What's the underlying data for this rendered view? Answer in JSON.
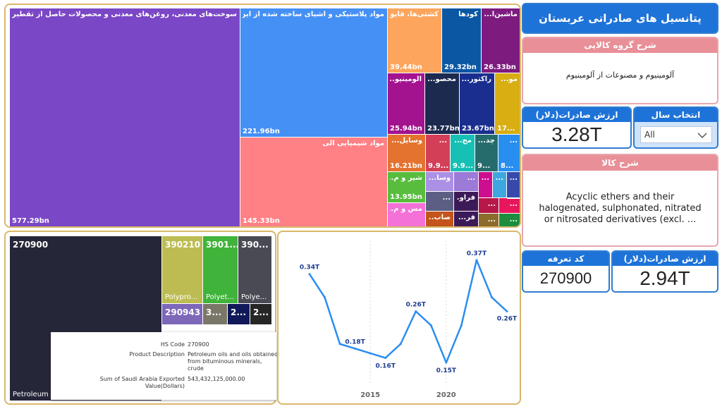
{
  "title": "پتانسیل های صادراتی عربستان",
  "group_card": {
    "header": "شرح گروه کالایی",
    "value": "آلومینیوم و مصنوعات از آلومینیوم"
  },
  "export_card_top": {
    "header": "ارزش صادرات(دلار)",
    "value": "3.28T"
  },
  "year_select": {
    "header": "انتخاب سال",
    "selected": "All",
    "arrow_icon": "chevron-down-icon"
  },
  "product_card": {
    "header": "شرح کالا",
    "value": "Acyclic ethers and their halogenated, sulphonated, nitrated or nitrosated derivatives (excl. ..."
  },
  "tariff_card": {
    "header": "کد تعرفه",
    "value": "270900"
  },
  "export_card_bottom": {
    "header": "ارزش صادرات(دلار)",
    "value": "2.94T"
  },
  "treemap_groups": [
    {
      "label": "سوخت‌های معدنی، روغن‌های معدنی و محصولات حاصل از تقطیر آنها؛ مواد ق...",
      "value": "577.29bn",
      "color": "#7a47c6"
    },
    {
      "label": "مواد پلاستیکی و اشیای ساخته شده از این مواد",
      "value": "221.96bn",
      "color": "#4590f5"
    },
    {
      "label": "مواد شیمیایی آلی",
      "value": "145.33bn",
      "color": "#ff8085"
    },
    {
      "label": "کشتی‌ها، قایق...",
      "value": "39.44bn",
      "color": "#fda55c"
    },
    {
      "label": "کودها",
      "value": "29.32bn",
      "color": "#0b57a4"
    },
    {
      "label": "ماشین‌آ...",
      "value": "26.33bn",
      "color": "#7d1b7f"
    },
    {
      "label": "آلومینیو...",
      "value": "25.94bn",
      "color": "#a3138f"
    },
    {
      "label": "محصو...",
      "value": "23.77bn",
      "color": "#1c2a4f"
    },
    {
      "label": "راکتور...",
      "value": "23.67bn",
      "color": "#192e8e"
    },
    {
      "label": "مو...",
      "value": "17...",
      "color": "#d8ae12"
    },
    {
      "label": "وسایل...",
      "value": "16.21bn",
      "color": "#e4732f"
    },
    {
      "label": "...",
      "value": "9.9...",
      "color": "#d43f58"
    },
    {
      "label": "مج...",
      "value": "9.9...",
      "color": "#17c0b4"
    },
    {
      "label": "چد...",
      "value": "9...",
      "color": "#276c6c"
    },
    {
      "label": "...",
      "value": "8...",
      "color": "#288ef0"
    },
    {
      "label": "شیر و م...",
      "value": "13.95bn",
      "color": "#58bd3d"
    },
    {
      "label": "وسا...",
      "value": "",
      "color": "#ab90e6"
    },
    {
      "label": "...",
      "value": "",
      "color": "#9c7ad7"
    },
    {
      "label": "فرآو...",
      "value": "",
      "color": "#3c1a58"
    },
    {
      "label": "...",
      "value": "",
      "color": "#cd0f8f"
    },
    {
      "label": "مس و م...",
      "value": "",
      "color": "#f472d8"
    },
    {
      "label": "صاب...",
      "value": "",
      "color": "#c3541b"
    },
    {
      "label": "...",
      "value": "",
      "color": "#b8174a"
    },
    {
      "label": "...",
      "value": "",
      "color": "#3fa7e0"
    },
    {
      "label": "...",
      "value": "",
      "color": "#3949ab"
    },
    {
      "label": "...",
      "value": "",
      "color": "#5b5f84"
    },
    {
      "label": "...",
      "value": "",
      "color": "#e8175d"
    },
    {
      "label": "...",
      "value": "",
      "color": "#1b8d3c"
    },
    {
      "label": "...",
      "value": "",
      "color": "#8c6d2c"
    },
    {
      "label": "...",
      "value": "",
      "color": "#6a1f24"
    },
    {
      "label": "...",
      "value": "",
      "color": "#c91d27"
    },
    {
      "label": "فر...",
      "value": "",
      "color": "#3b1a5a"
    }
  ],
  "treemap_hs": [
    {
      "code": "270900",
      "desc": "Petroleum ...",
      "color": "#252638"
    },
    {
      "code": "390210",
      "desc": "Polypro...",
      "color": "#bcbc52"
    },
    {
      "code": "3901...",
      "desc": "Polyet...",
      "color": "#3fb33a"
    },
    {
      "code": "390...",
      "desc": "Polye...",
      "color": "#4a4a55"
    },
    {
      "code": "290943",
      "desc": "",
      "color": "#7c67b8"
    },
    {
      "code": "3...",
      "desc": "",
      "color": "#7b7768"
    },
    {
      "code": "2...",
      "desc": "",
      "color": "#101a5a"
    },
    {
      "code": "2...",
      "desc": "",
      "color": "#262626"
    }
  ],
  "tooltip": {
    "rows": [
      {
        "key": "HS Code",
        "value": "270900"
      },
      {
        "key": "Product Description",
        "value": "Petroleum oils and oils obtained from bituminous minerals, crude"
      },
      {
        "key": "Sum of Saudi Arabia Exported Value(Dollars)",
        "value": "543,432,125,000.00"
      }
    ]
  },
  "chart_data": {
    "type": "line",
    "x_ticks": [
      "2015",
      "2020"
    ],
    "x": [
      2011,
      2012,
      2013,
      2014,
      2015,
      2016,
      2017,
      2018,
      2019,
      2020,
      2021,
      2022,
      2023,
      2024
    ],
    "values": [
      0.34,
      0.29,
      0.19,
      0.18,
      0.17,
      0.16,
      0.19,
      0.26,
      0.23,
      0.15,
      0.23,
      0.37,
      0.29,
      0.26
    ],
    "point_labels": [
      {
        "index": 0,
        "text": "0.34T"
      },
      {
        "index": 3,
        "text": "0.18T"
      },
      {
        "index": 5,
        "text": "0.16T"
      },
      {
        "index": 7,
        "text": "0.26T"
      },
      {
        "index": 9,
        "text": "0.15T"
      },
      {
        "index": 11,
        "text": "0.37T"
      },
      {
        "index": 13,
        "text": "0.26T"
      }
    ],
    "line_color": "#2b8ef0",
    "label_color": "#1d3d91"
  }
}
